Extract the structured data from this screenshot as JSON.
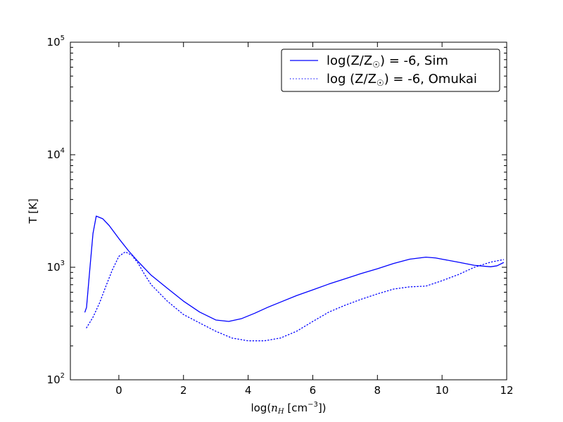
{
  "chart_data": {
    "type": "line",
    "xlabel": "log(n_H [cm^-3])",
    "ylabel": "T [K]",
    "xlim": [
      -1.5,
      12
    ],
    "ylim": [
      100,
      100000
    ],
    "yscale": "log",
    "grid": false,
    "legend_placement": "top-right",
    "x_ticks": [
      "0",
      "2",
      "4",
      "6",
      "8",
      "10",
      "12"
    ],
    "x_tick_values": [
      0,
      2,
      4,
      6,
      8,
      10,
      12
    ],
    "y_ticks": [
      {
        "base": "10",
        "exp": "2",
        "value": 100
      },
      {
        "base": "10",
        "exp": "3",
        "value": 1000
      },
      {
        "base": "10",
        "exp": "4",
        "value": 10000
      },
      {
        "base": "10",
        "exp": "5",
        "value": 100000
      }
    ],
    "series": [
      {
        "name": "log(Z/Z☉) = -6, Sim",
        "style": "solid",
        "color": "#0000ff",
        "x": [
          -1.05,
          -1.0,
          -0.9,
          -0.8,
          -0.7,
          -0.5,
          -0.3,
          0.0,
          0.3,
          0.6,
          1.0,
          1.5,
          2.0,
          2.5,
          3.0,
          3.4,
          3.8,
          4.2,
          4.6,
          5.0,
          5.5,
          6.0,
          6.5,
          7.0,
          7.5,
          8.0,
          8.5,
          9.0,
          9.5,
          9.8,
          10.0,
          10.5,
          11.0,
          11.5,
          11.7,
          11.9
        ],
        "y": [
          400,
          440,
          950,
          2000,
          2850,
          2700,
          2350,
          1800,
          1400,
          1120,
          850,
          650,
          500,
          400,
          340,
          330,
          350,
          390,
          440,
          490,
          560,
          630,
          710,
          790,
          880,
          970,
          1080,
          1180,
          1230,
          1210,
          1180,
          1110,
          1040,
          1010,
          1030,
          1100
        ]
      },
      {
        "name": "log (Z/Z☉) = -6, Omukai",
        "style": "dotted",
        "color": "#0000ff",
        "x": [
          -1.0,
          -0.8,
          -0.6,
          -0.4,
          -0.2,
          0.0,
          0.2,
          0.4,
          0.6,
          0.8,
          1.0,
          1.5,
          2.0,
          2.5,
          3.0,
          3.5,
          4.0,
          4.5,
          5.0,
          5.5,
          6.0,
          6.5,
          7.0,
          7.5,
          8.0,
          8.5,
          9.0,
          9.5,
          10.0,
          10.5,
          11.0,
          11.5,
          11.9
        ],
        "y": [
          290,
          360,
          480,
          680,
          950,
          1250,
          1370,
          1280,
          1080,
          860,
          700,
          500,
          380,
          320,
          270,
          235,
          222,
          222,
          235,
          270,
          330,
          400,
          460,
          520,
          580,
          640,
          670,
          680,
          760,
          860,
          1000,
          1110,
          1170
        ]
      }
    ]
  }
}
